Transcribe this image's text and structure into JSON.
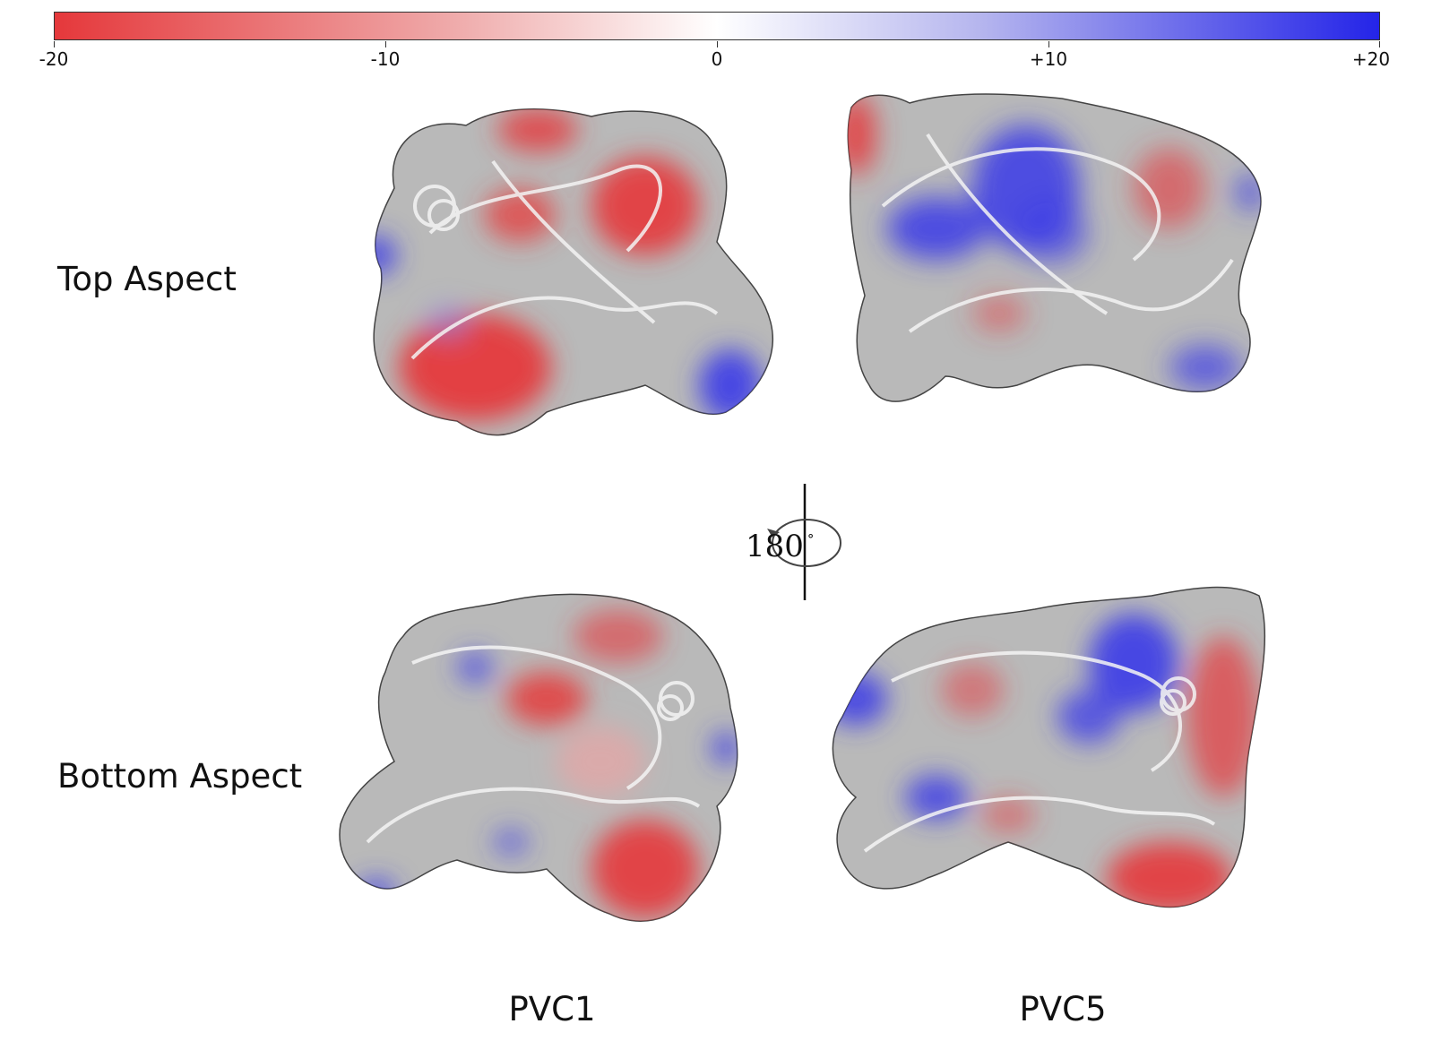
{
  "colorbar": {
    "ticks": [
      "-20",
      "-10",
      "0",
      "+10",
      "+20"
    ],
    "colors": {
      "negative": "#e5383b",
      "neutral": "#ffffff",
      "positive": "#2424e8"
    }
  },
  "rows": {
    "top": "Top Aspect",
    "bottom": "Bottom Aspect"
  },
  "columns": {
    "left": "PVC1",
    "right": "PVC5"
  },
  "rotation": {
    "value": "180",
    "unit": "°"
  },
  "surface_color": "#b9b9b9"
}
